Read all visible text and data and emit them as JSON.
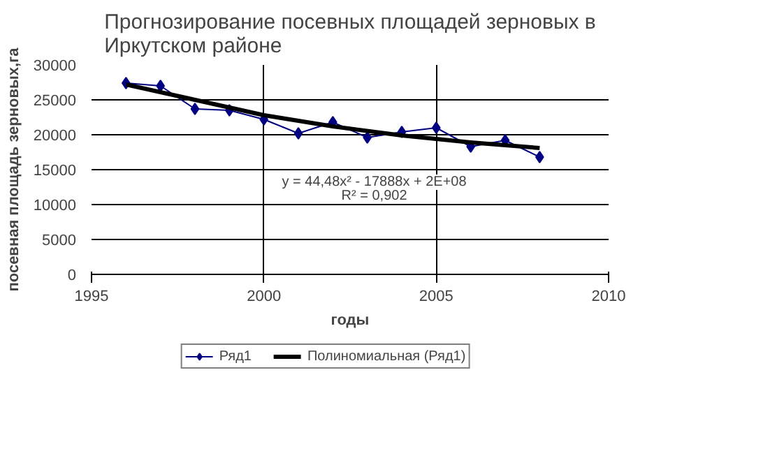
{
  "chart_data": {
    "type": "line",
    "title": "Прогнозирование посевных площадей зерновых в Иркутском районе",
    "xlabel": "годы",
    "ylabel": "посевная площадь зерновых,га",
    "x": [
      1996,
      1997,
      1998,
      1999,
      2000,
      2001,
      2002,
      2003,
      2004,
      2005,
      2006,
      2007,
      2008
    ],
    "series": [
      {
        "name": "Ряд1",
        "color": "#000080",
        "marker": "diamond",
        "values": [
          27400,
          27000,
          23700,
          23500,
          22200,
          20200,
          21800,
          19600,
          20400,
          21000,
          18300,
          19200,
          16800
        ]
      },
      {
        "name": "Полиномиальная (Ряд1)",
        "color": "#000000",
        "marker": "none",
        "x": [
          1996,
          1998,
          2000,
          2002,
          2004,
          2006,
          2008
        ],
        "values": [
          27200,
          25000,
          22800,
          21200,
          19900,
          18900,
          18100
        ]
      }
    ],
    "annotations": [
      "y = 44,48x² - 17888x + 2E+08",
      "R² = 0,902"
    ],
    "xlim": [
      1995,
      2010
    ],
    "xticks": [
      1995,
      2000,
      2005,
      2010
    ],
    "ylim": [
      0,
      30000
    ],
    "yticks": [
      0,
      5000,
      10000,
      15000,
      20000,
      25000,
      30000
    ],
    "grid": true,
    "legend": "bottom"
  }
}
